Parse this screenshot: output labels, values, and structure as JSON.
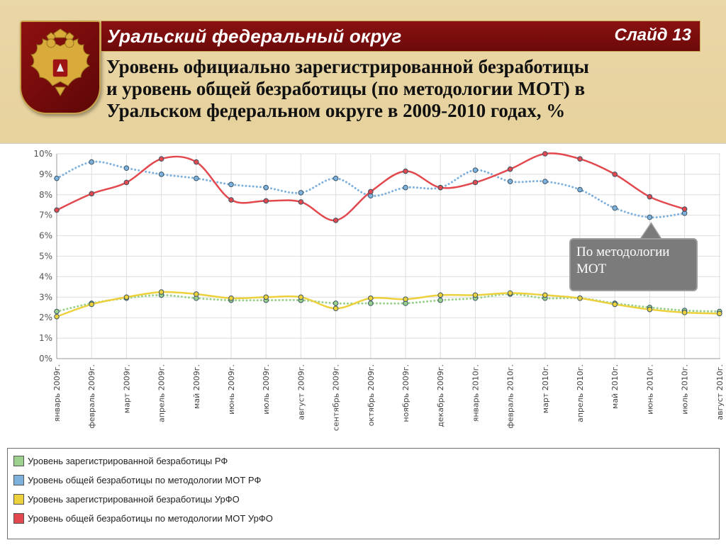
{
  "header": {
    "region_title": "Уральский федеральный округ",
    "slide_number": "Слайд 13",
    "subtitle_lines": [
      "Уровень официально зарегистрированной безработицы",
      "и уровень общей безработицы (по методологии МОТ) в",
      "Уральском федеральном округе в 2009-2010 годах, %"
    ]
  },
  "emblem": {
    "icon": "double-headed-eagle-icon"
  },
  "callout": {
    "lines": [
      "По методологии",
      "МОТ"
    ]
  },
  "chart_data": {
    "type": "line",
    "title": "",
    "xlabel": "",
    "ylabel": "",
    "ylim": [
      0,
      10
    ],
    "y_ticks": [
      "0%",
      "1%",
      "2%",
      "3%",
      "4%",
      "5%",
      "6%",
      "7%",
      "8%",
      "9%",
      "10%"
    ],
    "grid": true,
    "legend_position": "bottom",
    "categories": [
      "январь 2009г.",
      "февраль 2009г.",
      "март 2009г.",
      "апрель 2009г.",
      "май 2009г.",
      "июнь 2009г.",
      "июль 2009г.",
      "август 2009г.",
      "сентябрь 2009г.",
      "октябрь 2009г.",
      "ноябрь 2009г.",
      "декабрь 2009г.",
      "январь 2010г.",
      "февраль 2010г.",
      "март 2010г.",
      "апрель 2010г.",
      "май 2010г.",
      "июнь 2010г.",
      "июль 2010г.",
      "август 2010г."
    ],
    "series": [
      {
        "name": "Уровень зарегистрированной безработицы РФ",
        "color": "#9bd08d",
        "style": "dotted",
        "values": [
          2.3,
          2.7,
          2.95,
          3.1,
          2.95,
          2.85,
          2.85,
          2.85,
          2.7,
          2.7,
          2.7,
          2.85,
          2.95,
          3.15,
          2.95,
          2.95,
          2.7,
          2.5,
          2.35,
          2.3
        ]
      },
      {
        "name": "Уровень общей безработицы по методологии МОТ РФ",
        "color": "#7fb1dd",
        "style": "dotted",
        "values": [
          8.8,
          9.6,
          9.3,
          9.0,
          8.8,
          8.5,
          8.35,
          8.1,
          8.8,
          7.95,
          8.35,
          8.35,
          9.2,
          8.65,
          8.65,
          8.25,
          7.35,
          6.9,
          7.1,
          null
        ]
      },
      {
        "name": "Уровень зарегистрированной безработицы  УрФО",
        "color": "#ecd13c",
        "style": "solid",
        "values": [
          2.05,
          2.65,
          3.0,
          3.25,
          3.15,
          2.95,
          3.0,
          3.0,
          2.45,
          2.95,
          2.9,
          3.1,
          3.1,
          3.2,
          3.1,
          2.95,
          2.65,
          2.4,
          2.25,
          2.2
        ]
      },
      {
        "name": "Уровень общей безработицы по методологии МОТ  УрФО",
        "color": "#e2484d",
        "style": "solid",
        "values": [
          7.25,
          8.05,
          8.6,
          9.75,
          9.6,
          7.75,
          7.7,
          7.65,
          6.75,
          8.15,
          9.15,
          8.35,
          8.6,
          9.25,
          10.0,
          9.75,
          9.0,
          7.9,
          7.3,
          null
        ]
      }
    ]
  }
}
